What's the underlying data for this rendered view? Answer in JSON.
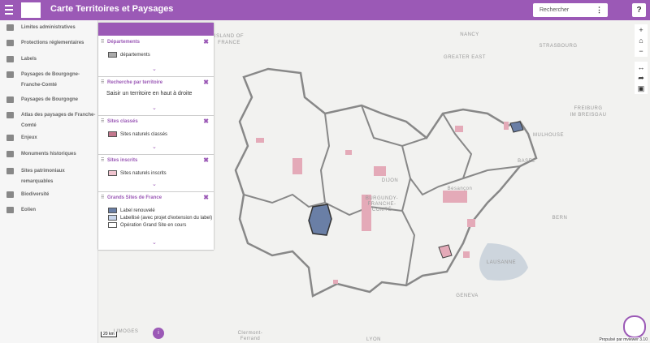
{
  "header": {
    "title": "Carte Territoires et Paysages",
    "search": "Rechercher",
    "help": "?"
  },
  "sidebar": [
    "Limites administratives",
    "Protections réglementaires",
    "Labels",
    "Paysages de Bourgogne-Franche-Comté",
    "Paysages de Bourgogne",
    "Atlas des paysages de Franche-Comté",
    "Enjeux",
    "Monuments historiques",
    "Sites patrimoniaux remarquables",
    "Biodiversité",
    "Eolien"
  ],
  "layers": [
    {
      "title": "Départements",
      "items": [
        "départements"
      ]
    },
    {
      "title": "Recherche par territoire",
      "text": "Saisir un territoire en haut à droite"
    },
    {
      "title": "Sites classés",
      "items": [
        "Sites naturels classés"
      ]
    },
    {
      "title": "Sites inscrits",
      "items": [
        "Sites naturels inscrits"
      ]
    },
    {
      "title": "Grands Sites de France",
      "items": [
        "Label renouvelé",
        "Labellisé (avec projet d'extension du label)",
        "Opération Grand Site en cours"
      ]
    }
  ],
  "map_labels": [
    "ISLAND OF",
    "FRANCE",
    "NANCY",
    "GREATER EAST",
    "STRASBOURG",
    "FREIBURG",
    "IM BREISGAU",
    "MULHOUSE",
    "BASEL",
    "BERN",
    "DIJON",
    "BURGUNDY-",
    "FRANCHE-",
    "COMTÉ",
    "Besançon",
    "LAUSANNE",
    "GENEVA",
    "LYON",
    "Clermont-",
    "Ferrand",
    "LIMOGES"
  ],
  "scale": "20 km",
  "attribution": "Propulsé par mviewer 3.10"
}
